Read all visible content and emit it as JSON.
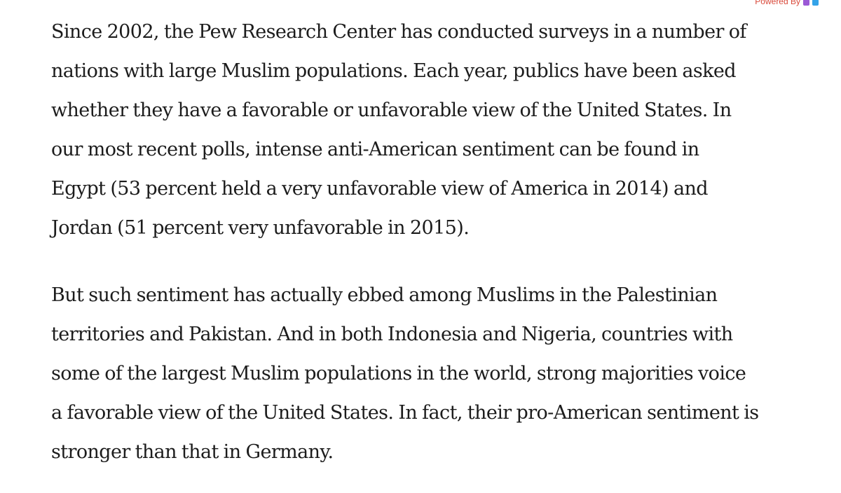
{
  "widget": {
    "powered_by_label": "Powered By",
    "icons": [
      "brand-icon-purple",
      "brand-icon-blue"
    ],
    "label_color": "#d94a3b"
  },
  "article": {
    "paragraphs": [
      {
        "lines": [
          "Since 2002, the Pew Research Center has conducted surveys in a number of",
          "nations with large Muslim populations. Each year, publics have been asked",
          "whether they have a favorable or unfavorable view of the United States. In",
          "our most recent polls, intense anti-American sentiment can be found in",
          "Egypt (53 percent held a very unfavorable view of America in 2014) and",
          "Jordan (51 percent very unfavorable in 2015)."
        ]
      },
      {
        "lines": [
          "But such sentiment has actually ebbed among Muslims in the Palestinian",
          "territories and Pakistan. And in both Indonesia and Nigeria, countries with",
          "some of the largest Muslim populations in the world, strong majorities voice",
          "a favorable view of the United States. In fact, their pro-American sentiment is",
          "stronger than that in Germany."
        ]
      }
    ]
  }
}
